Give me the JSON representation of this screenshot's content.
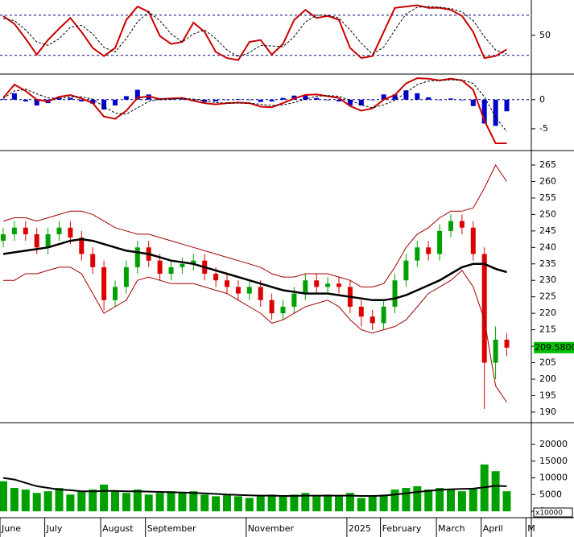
{
  "chart_data": [
    {
      "type": "line",
      "ylim": [
        -8,
        100.4
      ],
      "yticks": [
        50
      ],
      "reference_lines": [
        20,
        80
      ],
      "series": [
        {
          "kind": "line",
          "color": "#cc0000",
          "values": [
            79,
            67,
            45,
            21,
            43,
            60,
            76,
            55,
            31,
            19,
            31,
            73,
            93,
            85,
            49,
            37,
            40,
            69,
            55,
            25,
            16,
            13,
            40,
            43,
            21,
            37,
            73,
            88,
            76,
            79,
            73,
            31,
            16,
            19,
            55,
            91,
            93,
            95,
            91,
            91,
            88,
            79,
            55,
            16,
            19,
            29,
            null,
            null
          ]
        },
        {
          "kind": "dashed",
          "color": "#000000",
          "values": [
            75,
            72,
            58,
            40,
            35,
            45,
            62,
            65,
            52,
            32,
            25,
            45,
            70,
            85,
            72,
            52,
            40,
            52,
            58,
            45,
            28,
            18,
            24,
            35,
            34,
            33,
            48,
            70,
            80,
            80,
            76,
            58,
            38,
            22,
            32,
            58,
            82,
            92,
            93,
            92,
            90,
            85,
            72,
            48,
            28,
            22,
            null,
            null
          ]
        }
      ]
    },
    {
      "type": "line",
      "ylim": [
        -8.75,
        4.4
      ],
      "yticks": [
        0,
        -5
      ],
      "reference_lines": [
        0
      ],
      "series": [
        {
          "kind": "bar",
          "color": "#0000cc",
          "values": [
            0.1,
            1.1,
            -0.3,
            -1.0,
            -0.6,
            0.3,
            0.3,
            -0.3,
            -0.7,
            -1.7,
            -1.0,
            0.6,
            1.7,
            0.9,
            0,
            0.1,
            0.1,
            -0.3,
            -0.4,
            -0.3,
            0,
            0.1,
            0,
            -0.4,
            -0.3,
            0.3,
            0.7,
            0.7,
            0.3,
            -0.1,
            -0.3,
            -1.0,
            -1.0,
            -0.1,
            0.9,
            0.9,
            1.6,
            1.1,
            0.4,
            0,
            0.2,
            -0.1,
            -1.1,
            -4.1,
            -4.5,
            -2.0,
            null,
            null
          ]
        },
        {
          "kind": "line",
          "color": "#cc0000",
          "values": [
            0.3,
            2.6,
            1.5,
            0,
            -0.3,
            0.5,
            0.8,
            0.2,
            -0.6,
            -2.9,
            -3.3,
            -1.9,
            0.3,
            0.6,
            0.1,
            0.2,
            0.3,
            -0.2,
            -0.6,
            -0.8,
            -0.6,
            -0.5,
            -0.6,
            -1.2,
            -1.3,
            -0.6,
            0.2,
            0.8,
            0.9,
            0.6,
            0.3,
            -1.1,
            -1.9,
            -1.5,
            0,
            0.8,
            2.8,
            3.7,
            3.6,
            3.3,
            3.6,
            3.3,
            1.7,
            -3.6,
            -7.5,
            -7.5,
            null,
            null
          ]
        },
        {
          "kind": "dashed",
          "color": "#000000",
          "values": [
            0.2,
            1.5,
            1.8,
            1.0,
            0.3,
            0.2,
            0.5,
            0.5,
            0.1,
            -1.2,
            -2.3,
            -2.5,
            -1.4,
            -0.3,
            0.1,
            0.1,
            0.2,
            0.1,
            -0.2,
            -0.5,
            -0.6,
            -0.6,
            -0.6,
            -0.8,
            -1.0,
            -0.9,
            -0.5,
            0.1,
            0.6,
            0.7,
            0.6,
            -0.1,
            -0.9,
            -1.4,
            -0.9,
            -0.1,
            1.2,
            2.6,
            3.2,
            3.3,
            3.4,
            3.4,
            2.8,
            0.5,
            -3.0,
            -5.5,
            null,
            null
          ]
        }
      ]
    },
    {
      "type": "candlestick",
      "ylim": [
        186.8,
        269.4
      ],
      "yticks": [
        190,
        195,
        200,
        205,
        210,
        215,
        220,
        225,
        230,
        235,
        240,
        245,
        250,
        255,
        260,
        265
      ],
      "up_color": "#00a000",
      "down_color": "#dd0000",
      "open": [
        242,
        244,
        246,
        244,
        240,
        244,
        246,
        243,
        238,
        234,
        224,
        228,
        234,
        240,
        236,
        232,
        234,
        235,
        236,
        232,
        230,
        228,
        226,
        228,
        224,
        220,
        222,
        226,
        230,
        228,
        229,
        228,
        222,
        219,
        217,
        222,
        230,
        236,
        240,
        238,
        245,
        248,
        246,
        238,
        205,
        212,
        null,
        null
      ],
      "high": [
        246,
        248,
        248,
        246,
        246,
        248,
        248,
        245,
        240,
        236,
        230,
        236,
        242,
        242,
        238,
        236,
        237,
        238,
        238,
        234,
        232,
        230,
        230,
        230,
        226,
        224,
        228,
        232,
        232,
        231,
        231,
        230,
        224,
        221,
        224,
        232,
        238,
        242,
        242,
        247,
        250,
        250,
        248,
        240,
        216,
        214,
        null,
        null
      ],
      "low": [
        240,
        242,
        242,
        238,
        238,
        242,
        241,
        236,
        232,
        221,
        222,
        226,
        232,
        234,
        230,
        230,
        232,
        233,
        230,
        228,
        226,
        224,
        224,
        222,
        218,
        218,
        220,
        224,
        226,
        226,
        226,
        220,
        216,
        215,
        215,
        220,
        228,
        234,
        236,
        236,
        243,
        244,
        236,
        191,
        200,
        207,
        null,
        null
      ],
      "close": [
        244,
        246,
        244,
        240,
        244,
        246,
        243,
        238,
        234,
        224,
        228,
        234,
        240,
        236,
        232,
        234,
        235,
        236,
        232,
        230,
        228,
        226,
        228,
        224,
        220,
        222,
        226,
        230,
        228,
        229,
        228,
        222,
        219,
        217,
        222,
        230,
        236,
        240,
        238,
        245,
        248,
        246,
        238,
        205,
        212,
        209.58,
        null,
        null
      ],
      "series": [
        {
          "kind": "line",
          "color": "#a00000",
          "values": [
            248,
            249,
            249,
            248,
            249,
            250,
            251,
            251,
            250,
            248,
            246,
            245,
            244,
            244,
            243,
            242,
            241,
            240,
            239,
            238,
            237,
            236,
            235,
            234,
            232,
            231,
            231,
            232,
            232,
            232,
            231,
            230,
            228,
            228,
            229,
            234,
            240,
            244,
            246,
            249,
            251,
            251,
            252,
            258,
            265,
            260,
            null,
            null
          ]
        },
        {
          "kind": "line",
          "color": "#a00000",
          "values": [
            230,
            230,
            232,
            232,
            233,
            234,
            234,
            232,
            226,
            220,
            222,
            224,
            230,
            231,
            230,
            229,
            229,
            229,
            228,
            227,
            226,
            224,
            222,
            220,
            217,
            218,
            220,
            222,
            223,
            224,
            222,
            218,
            215,
            214,
            215,
            216,
            218,
            222,
            226,
            228,
            230,
            233,
            228,
            218,
            198,
            193,
            null,
            null
          ]
        },
        {
          "kind": "thick",
          "color": "#000000",
          "values": [
            238,
            238.5,
            239,
            239.5,
            240,
            241,
            242,
            242.5,
            242,
            241,
            240,
            239,
            238.5,
            238,
            237,
            236,
            235.5,
            235,
            234,
            233,
            232,
            231,
            230,
            229,
            228,
            227,
            226.5,
            226,
            226,
            226,
            225.5,
            225,
            224.5,
            224,
            224,
            224.5,
            225.5,
            227,
            228.5,
            230,
            232,
            234,
            235,
            235,
            233.5,
            232.5,
            null,
            null
          ]
        }
      ],
      "last_price": {
        "value": 209.58,
        "label": "209.5800"
      }
    },
    {
      "type": "bar",
      "ylim": [
        -1900,
        26500
      ],
      "yticks": [
        0,
        5000,
        10000,
        15000,
        20000
      ],
      "unit_label": "x10000",
      "color": "#00a000",
      "values": [
        9000,
        7000,
        6500,
        5500,
        6000,
        7000,
        5000,
        6000,
        6500,
        8000,
        6000,
        5500,
        6500,
        5000,
        5500,
        6000,
        5500,
        6000,
        5000,
        4500,
        5000,
        4500,
        4000,
        4500,
        5000,
        4500,
        5000,
        5500,
        4500,
        5000,
        4500,
        5500,
        4000,
        4500,
        5000,
        6500,
        7000,
        7500,
        6500,
        7000,
        6500,
        6000,
        7000,
        14000,
        12000,
        6000,
        null,
        null
      ],
      "series": [
        {
          "kind": "line",
          "color": "#000000",
          "values": [
            10000,
            9500,
            8500,
            7500,
            7000,
            6500,
            6300,
            6000,
            6000,
            6100,
            6100,
            6000,
            6000,
            5900,
            5800,
            5700,
            5600,
            5500,
            5400,
            5200,
            5000,
            4900,
            4800,
            4700,
            4700,
            4600,
            4600,
            4700,
            4700,
            4700,
            4700,
            4700,
            4600,
            4600,
            4700,
            5000,
            5400,
            5800,
            6100,
            6400,
            6600,
            6700,
            6800,
            7200,
            7600,
            7500,
            null,
            null
          ]
        }
      ],
      "categories": [
        "June",
        null,
        null,
        null,
        "July",
        null,
        null,
        null,
        null,
        "August",
        null,
        null,
        null,
        "September",
        null,
        null,
        null,
        null,
        null,
        null,
        null,
        null,
        "November",
        null,
        null,
        null,
        null,
        null,
        null,
        null,
        null,
        "2025",
        null,
        null,
        "February",
        null,
        null,
        null,
        null,
        "March",
        null,
        null,
        null,
        "April",
        null,
        null,
        null,
        "M"
      ]
    }
  ]
}
